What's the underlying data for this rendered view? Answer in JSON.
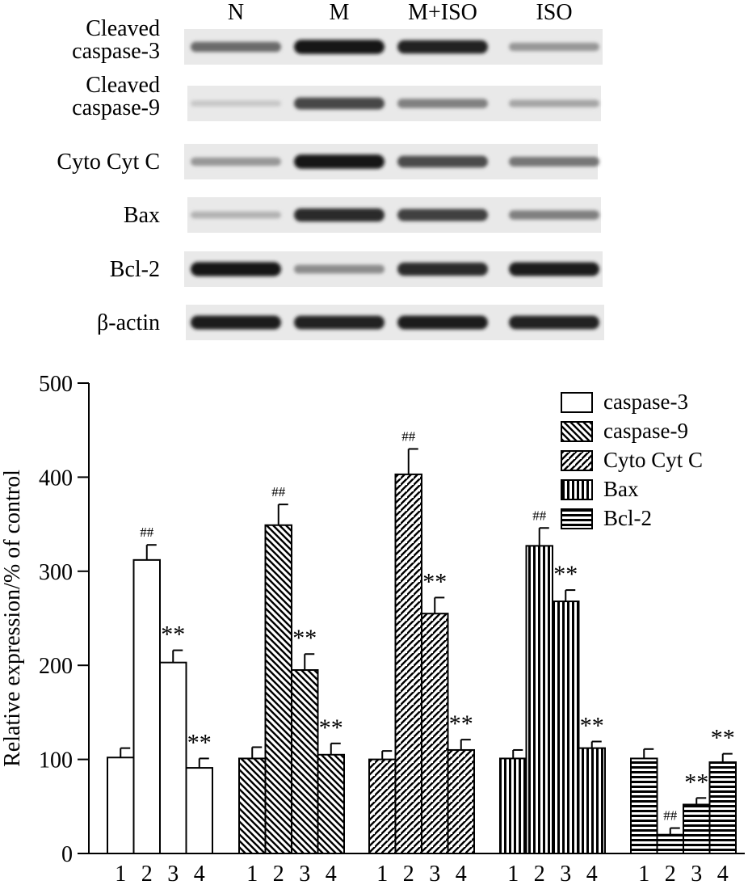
{
  "blot": {
    "lanes": [
      "N",
      "M",
      "M+ISO",
      "ISO"
    ],
    "rows": [
      {
        "label": [
          "Cleaved",
          "caspase-3"
        ],
        "intensity": [
          0.55,
          0.95,
          0.88,
          0.35
        ]
      },
      {
        "label": [
          "Cleaved",
          "caspase-9"
        ],
        "intensity": [
          0.12,
          0.72,
          0.45,
          0.28
        ]
      },
      {
        "label": [
          "Cyto Cyt C"
        ],
        "intensity": [
          0.35,
          0.95,
          0.7,
          0.5
        ]
      },
      {
        "label": [
          "Bax"
        ],
        "intensity": [
          0.22,
          0.85,
          0.75,
          0.45
        ]
      },
      {
        "label": [
          "Bcl-2"
        ],
        "intensity": [
          0.95,
          0.4,
          0.85,
          0.92
        ]
      },
      {
        "label": [
          "β-actin"
        ],
        "intensity": [
          0.92,
          0.9,
          0.92,
          0.9
        ]
      }
    ]
  },
  "chart_data": {
    "type": "bar",
    "ylabel": "Relative expression/% of control",
    "ylim": [
      0,
      500
    ],
    "yticks": [
      "0",
      "100",
      "200",
      "300",
      "400",
      "500"
    ],
    "categories": [
      "1",
      "2",
      "3",
      "4"
    ],
    "legend_position": "top-right",
    "series": [
      {
        "name": "caspase-3",
        "pattern": "open",
        "values": [
          102,
          312,
          203,
          91
        ],
        "errors": [
          10,
          16,
          13,
          10
        ],
        "marks": [
          "",
          "##",
          "**",
          "**"
        ]
      },
      {
        "name": "caspase-9",
        "pattern": "backslash",
        "values": [
          101,
          349,
          195,
          105
        ],
        "errors": [
          12,
          22,
          17,
          12
        ],
        "marks": [
          "",
          "##",
          "**",
          "**"
        ]
      },
      {
        "name": "Cyto Cyt C",
        "pattern": "slash",
        "values": [
          100,
          403,
          255,
          110
        ],
        "errors": [
          9,
          27,
          17,
          11
        ],
        "marks": [
          "",
          "##",
          "**",
          "**"
        ]
      },
      {
        "name": "Bax",
        "pattern": "vertical",
        "values": [
          101,
          327,
          268,
          112
        ],
        "errors": [
          9,
          19,
          12,
          7
        ],
        "marks": [
          "",
          "##",
          "**",
          "**"
        ]
      },
      {
        "name": "Bcl-2",
        "pattern": "horizontal",
        "values": [
          101,
          20,
          52,
          97
        ],
        "errors": [
          10,
          7,
          7,
          9
        ],
        "marks": [
          "",
          "##",
          "**",
          "**"
        ]
      }
    ]
  }
}
